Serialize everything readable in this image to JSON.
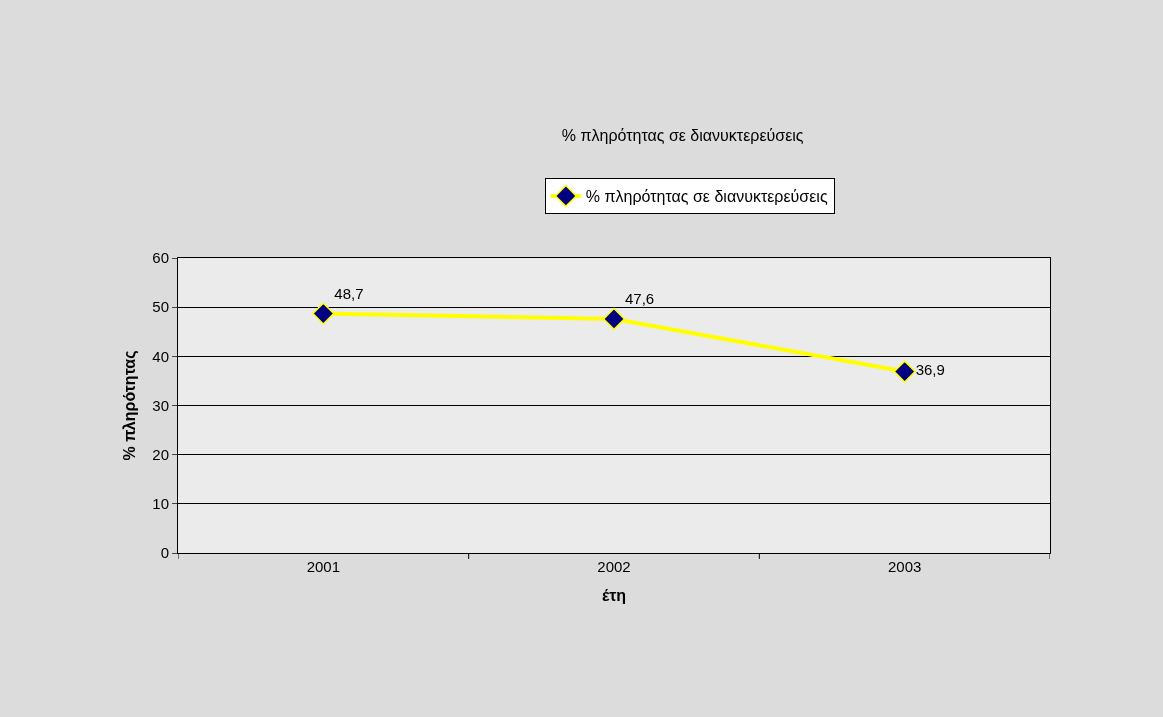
{
  "chart_data": {
    "type": "line",
    "title": "% πληρότητας σε διανυκτερεύσεις",
    "xlabel": "έτη",
    "ylabel": "% πληρότητας",
    "categories": [
      "2001",
      "2002",
      "2003"
    ],
    "series": [
      {
        "name": "% πληρότητας σε διανυκτερεύσεις",
        "color": "#ffff00",
        "values": [
          48.7,
          47.6,
          36.9
        ],
        "value_labels": [
          "48,7",
          "47,6",
          "36,9"
        ]
      }
    ],
    "ylim": [
      0,
      60
    ],
    "yticks": [
      0,
      10,
      20,
      30,
      40,
      50,
      60
    ],
    "grid": "y",
    "legend": "top",
    "marker": "diamond",
    "line_style": "solid"
  }
}
